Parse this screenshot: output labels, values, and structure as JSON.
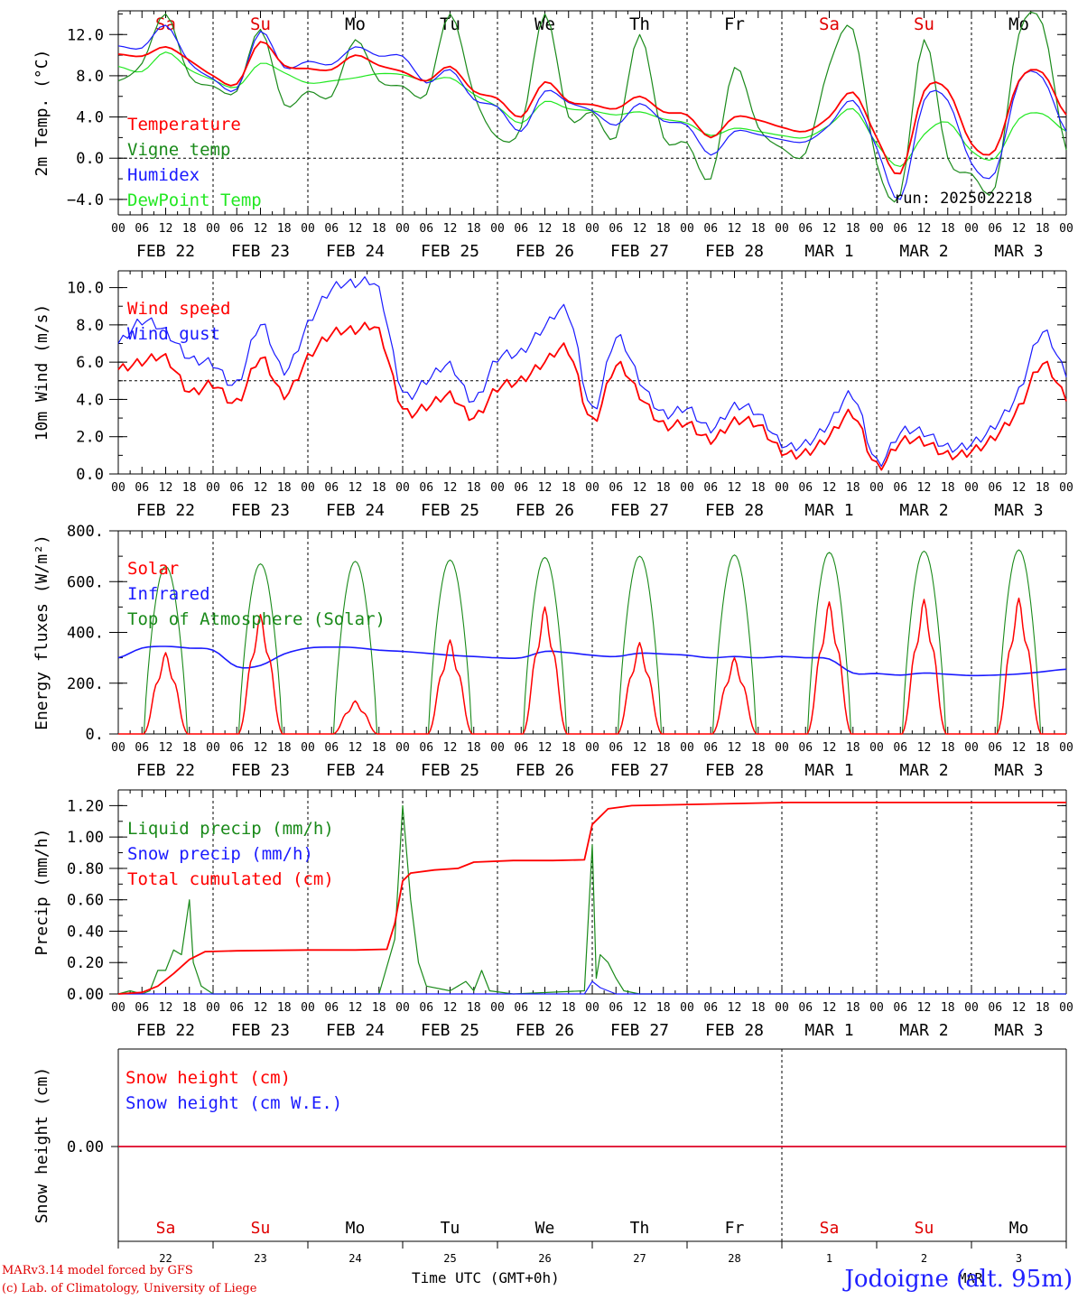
{
  "footer": {
    "model": "MARv3.14 model forced by GFS",
    "copyright": "(c) Lab. of Climatology, University of Liege",
    "time_axis": "Time UTC (GMT+0h)",
    "station": "Jodoigne (alt. 95m)"
  },
  "run": "run: 2025022218",
  "hour_ticks": [
    "00",
    "06",
    "12",
    "18"
  ],
  "date_labels": [
    "FEB 22",
    "FEB 23",
    "FEB 24",
    "FEB 25",
    "FEB 26",
    "FEB 27",
    "FEB 28",
    "MAR  1",
    "MAR  2",
    "MAR  3"
  ],
  "day_labels": [
    {
      "label": "Sa",
      "color": "#e00000"
    },
    {
      "label": "Su",
      "color": "#e00000"
    },
    {
      "label": "Mo",
      "color": "#000000"
    },
    {
      "label": "Tu",
      "color": "#000000"
    },
    {
      "label": "We",
      "color": "#000000"
    },
    {
      "label": "Th",
      "color": "#000000"
    },
    {
      "label": "Fr",
      "color": "#000000"
    },
    {
      "label": "Sa",
      "color": "#e00000"
    },
    {
      "label": "Su",
      "color": "#e00000"
    },
    {
      "label": "Mo",
      "color": "#000000"
    }
  ],
  "bottom_day_numbers": [
    "22",
    "23",
    "24",
    "25",
    "26",
    "27",
    "28",
    "1",
    "2",
    "3"
  ],
  "bottom_month_label": "MAR",
  "colors": {
    "red": "#ff0000",
    "green": "#1a8a1a",
    "blue": "#1a1aff",
    "lightgreen": "#22e822"
  },
  "chart_data": [
    {
      "id": "temp",
      "type": "line",
      "ylabel": "2m Temp. (°C)",
      "ylim": [
        -5.5,
        14.3
      ],
      "yticks": [
        -4.0,
        0.0,
        4.0,
        8.0,
        12.0
      ],
      "ytick_labels": [
        "−4.0",
        "0.0",
        "4.0",
        "8.0",
        "12.0"
      ],
      "ref_line": 0.0,
      "x_hours": [
        0,
        6,
        12,
        18,
        24,
        30,
        36,
        42,
        48,
        54,
        60,
        66,
        72,
        78,
        84,
        90,
        96,
        102,
        108,
        114,
        120,
        126,
        132,
        138,
        144,
        150,
        156,
        162,
        168,
        174,
        180,
        186,
        192,
        198,
        204,
        210,
        216,
        222,
        228,
        234,
        240
      ],
      "series": [
        {
          "name": "Temperature",
          "color": "red",
          "values": [
            10.1,
            9.9,
            10.8,
            9.5,
            8.0,
            7.2,
            11.3,
            9.0,
            8.7,
            8.6,
            10.0,
            9.0,
            8.4,
            7.5,
            8.9,
            6.5,
            5.8,
            4.0,
            7.4,
            5.5,
            5.2,
            4.8,
            6.0,
            4.5,
            4.2,
            2.0,
            4.0,
            3.7,
            3.0,
            2.6,
            4.0,
            6.4,
            2.0,
            -1.5,
            6.5,
            6.6,
            1.4,
            0.8,
            7.5,
            8.3,
            4.2
          ]
        },
        {
          "name": "Vigne temp",
          "color": "green",
          "values": [
            7.5,
            9.2,
            14.0,
            8.0,
            7.0,
            6.5,
            12.5,
            5.2,
            6.5,
            6.0,
            11.5,
            7.5,
            7.0,
            6.2,
            14.0,
            6.2,
            2.0,
            3.0,
            14.0,
            4.0,
            4.5,
            2.0,
            12.0,
            2.0,
            1.5,
            -2.0,
            8.8,
            3.0,
            1.0,
            0.5,
            9.0,
            12.5,
            -0.5,
            -3.5,
            11.5,
            0.0,
            -1.5,
            -2.8,
            12.0,
            13.0,
            0.8
          ]
        },
        {
          "name": "Humidex",
          "color": "blue",
          "values": [
            10.9,
            10.7,
            12.9,
            9.3,
            7.7,
            6.7,
            12.3,
            8.8,
            9.4,
            9.1,
            10.8,
            9.9,
            9.9,
            7.3,
            8.6,
            5.7,
            5.0,
            2.6,
            6.5,
            5.4,
            4.6,
            3.2,
            5.3,
            3.6,
            3.2,
            0.3,
            2.6,
            2.3,
            1.8,
            1.6,
            3.2,
            5.6,
            1.0,
            -4.0,
            5.6,
            5.6,
            -0.5,
            -1.4,
            7.4,
            7.8,
            2.6
          ]
        },
        {
          "name": "DewPoint Temp",
          "color": "lightgreen",
          "values": [
            8.9,
            8.4,
            10.3,
            8.6,
            7.6,
            6.9,
            9.2,
            8.3,
            7.3,
            7.5,
            7.8,
            8.2,
            8.1,
            7.5,
            7.8,
            6.2,
            5.0,
            3.4,
            5.5,
            4.8,
            4.6,
            4.2,
            4.5,
            3.8,
            3.4,
            2.2,
            2.9,
            2.6,
            2.2,
            2.0,
            3.2,
            4.8,
            1.4,
            -0.8,
            2.3,
            3.5,
            0.7,
            0.0,
            3.8,
            4.3,
            2.6
          ]
        }
      ],
      "legend": [
        "Temperature",
        "Vigne temp",
        "Humidex",
        "DewPoint Temp"
      ]
    },
    {
      "id": "wind",
      "type": "line",
      "ylabel": "10m Wind (m/s)",
      "ylim": [
        0,
        10.9
      ],
      "yticks": [
        0.0,
        2.0,
        4.0,
        6.0,
        8.0,
        10.0
      ],
      "ytick_labels": [
        "0.0",
        "2.0",
        "4.0",
        "6.0",
        "8.0",
        "10.0"
      ],
      "ref_line": 5.0,
      "x_hours": [
        0,
        6,
        12,
        18,
        24,
        30,
        36,
        42,
        48,
        54,
        60,
        66,
        72,
        78,
        84,
        90,
        96,
        102,
        108,
        114,
        120,
        126,
        132,
        138,
        144,
        150,
        156,
        162,
        168,
        174,
        180,
        186,
        192,
        198,
        204,
        210,
        216,
        222,
        228,
        234,
        240
      ],
      "series": [
        {
          "name": "Wind speed",
          "color": "red",
          "values": [
            5.6,
            6.0,
            6.2,
            4.4,
            4.8,
            3.8,
            6.2,
            4.2,
            6.2,
            7.5,
            7.7,
            7.6,
            3.5,
            3.6,
            4.2,
            3.0,
            4.6,
            5.0,
            6.0,
            6.6,
            2.8,
            5.8,
            4.2,
            2.6,
            2.7,
            1.8,
            2.8,
            2.6,
            1.2,
            1.1,
            2.0,
            3.2,
            0.4,
            1.7,
            1.7,
            1.0,
            1.2,
            2.0,
            3.5,
            5.9,
            4.1
          ]
        },
        {
          "name": "Wind gust",
          "color": "blue",
          "values": [
            7.0,
            8.2,
            7.6,
            6.2,
            5.9,
            4.8,
            8.0,
            5.5,
            8.0,
            9.9,
            10.2,
            9.8,
            4.4,
            5.0,
            5.8,
            3.9,
            6.2,
            6.5,
            7.9,
            8.6,
            3.4,
            7.3,
            5.0,
            3.2,
            3.5,
            2.4,
            3.6,
            3.2,
            1.6,
            1.6,
            2.7,
            4.2,
            0.6,
            2.2,
            2.2,
            1.4,
            1.6,
            2.6,
            4.4,
            7.6,
            5.4
          ]
        }
      ],
      "legend": [
        "Wind speed",
        "Wind gust"
      ]
    },
    {
      "id": "flux",
      "type": "line",
      "ylabel": "Energy fluxes (W/m²)",
      "ylim": [
        0,
        800
      ],
      "yticks": [
        0,
        200,
        400,
        600,
        800
      ],
      "ytick_labels": [
        "0.",
        "200.",
        "400.",
        "600.",
        "800."
      ],
      "solar_peaks": [
        320,
        470,
        130,
        370,
        500,
        360,
        300,
        520,
        530,
        535
      ],
      "toa_peaks": [
        660,
        670,
        680,
        685,
        695,
        700,
        705,
        715,
        720,
        725
      ],
      "infrared_values": [
        300,
        338,
        345,
        338,
        330,
        265,
        270,
        315,
        338,
        342,
        340,
        330,
        325,
        318,
        310,
        305,
        300,
        300,
        325,
        320,
        310,
        305,
        318,
        315,
        310,
        300,
        305,
        300,
        305,
        300,
        295,
        240,
        238,
        232,
        240,
        235,
        230,
        232,
        236,
        245,
        255
      ],
      "legend": [
        "Solar",
        "Infrared",
        "Top of Atmosphere (Solar)"
      ],
      "series_colors": {
        "Solar": "red",
        "Infrared": "blue",
        "Top of Atmosphere (Solar)": "green"
      }
    },
    {
      "id": "precip",
      "type": "line",
      "ylabel": "Precip (mm/h)",
      "ylim": [
        0,
        1.3
      ],
      "yticks": [
        0.0,
        0.2,
        0.4,
        0.6,
        0.8,
        1.0,
        1.2
      ],
      "ytick_labels": [
        "0.00",
        "0.20",
        "0.40",
        "0.60",
        "0.80",
        "1.00",
        "1.20"
      ],
      "series": [
        {
          "name": "Liquid precip (mm/h)",
          "color": "green",
          "points": [
            [
              0,
              0
            ],
            [
              3,
              0.02
            ],
            [
              6,
              0.0
            ],
            [
              8,
              0.02
            ],
            [
              10,
              0.15
            ],
            [
              12,
              0.15
            ],
            [
              14,
              0.28
            ],
            [
              16,
              0.25
            ],
            [
              18,
              0.6
            ],
            [
              19,
              0.2
            ],
            [
              21,
              0.05
            ],
            [
              24,
              0.0
            ],
            [
              48,
              0.0
            ],
            [
              66,
              0.0
            ],
            [
              70,
              0.35
            ],
            [
              72,
              1.2
            ],
            [
              74,
              0.6
            ],
            [
              76,
              0.2
            ],
            [
              78,
              0.05
            ],
            [
              84,
              0.02
            ],
            [
              88,
              0.08
            ],
            [
              90,
              0.02
            ],
            [
              92,
              0.15
            ],
            [
              94,
              0.02
            ],
            [
              100,
              0.0
            ],
            [
              118,
              0.02
            ],
            [
              120,
              0.95
            ],
            [
              121,
              0.1
            ],
            [
              122,
              0.25
            ],
            [
              124,
              0.2
            ],
            [
              126,
              0.1
            ],
            [
              128,
              0.02
            ],
            [
              132,
              0.0
            ],
            [
              240,
              0.0
            ]
          ]
        },
        {
          "name": "Snow precip (mm/h)",
          "color": "blue",
          "points": [
            [
              0,
              0
            ],
            [
              118,
              0
            ],
            [
              120,
              0.08
            ],
            [
              122,
              0.04
            ],
            [
              124,
              0.02
            ],
            [
              126,
              0.0
            ],
            [
              240,
              0.0
            ]
          ]
        },
        {
          "name": "Total cumulated (cm)",
          "color": "red",
          "points": [
            [
              0,
              0
            ],
            [
              6,
              0.01
            ],
            [
              10,
              0.05
            ],
            [
              14,
              0.13
            ],
            [
              18,
              0.22
            ],
            [
              22,
              0.27
            ],
            [
              30,
              0.275
            ],
            [
              48,
              0.28
            ],
            [
              60,
              0.28
            ],
            [
              68,
              0.285
            ],
            [
              70,
              0.45
            ],
            [
              72,
              0.72
            ],
            [
              74,
              0.77
            ],
            [
              80,
              0.79
            ],
            [
              86,
              0.8
            ],
            [
              90,
              0.84
            ],
            [
              100,
              0.85
            ],
            [
              110,
              0.85
            ],
            [
              118,
              0.855
            ],
            [
              120,
              1.08
            ],
            [
              124,
              1.18
            ],
            [
              130,
              1.2
            ],
            [
              150,
              1.21
            ],
            [
              170,
              1.22
            ],
            [
              240,
              1.22
            ]
          ]
        }
      ],
      "legend": [
        "Liquid precip (mm/h)",
        "Snow precip (mm/h)",
        "Total cumulated (cm)"
      ]
    },
    {
      "id": "snow",
      "type": "line",
      "ylabel": "Snow height (cm)",
      "yticks": [
        0.0
      ],
      "ytick_labels": [
        "0.00"
      ],
      "series": [
        {
          "name": "Snow height (cm)",
          "color": "red",
          "values": [
            0,
            0
          ]
        },
        {
          "name": "Snow height (cm W.E.)",
          "color": "blue",
          "values": [
            0,
            0
          ]
        }
      ],
      "legend": [
        "Snow height (cm)",
        "Snow height (cm W.E.)"
      ]
    }
  ]
}
